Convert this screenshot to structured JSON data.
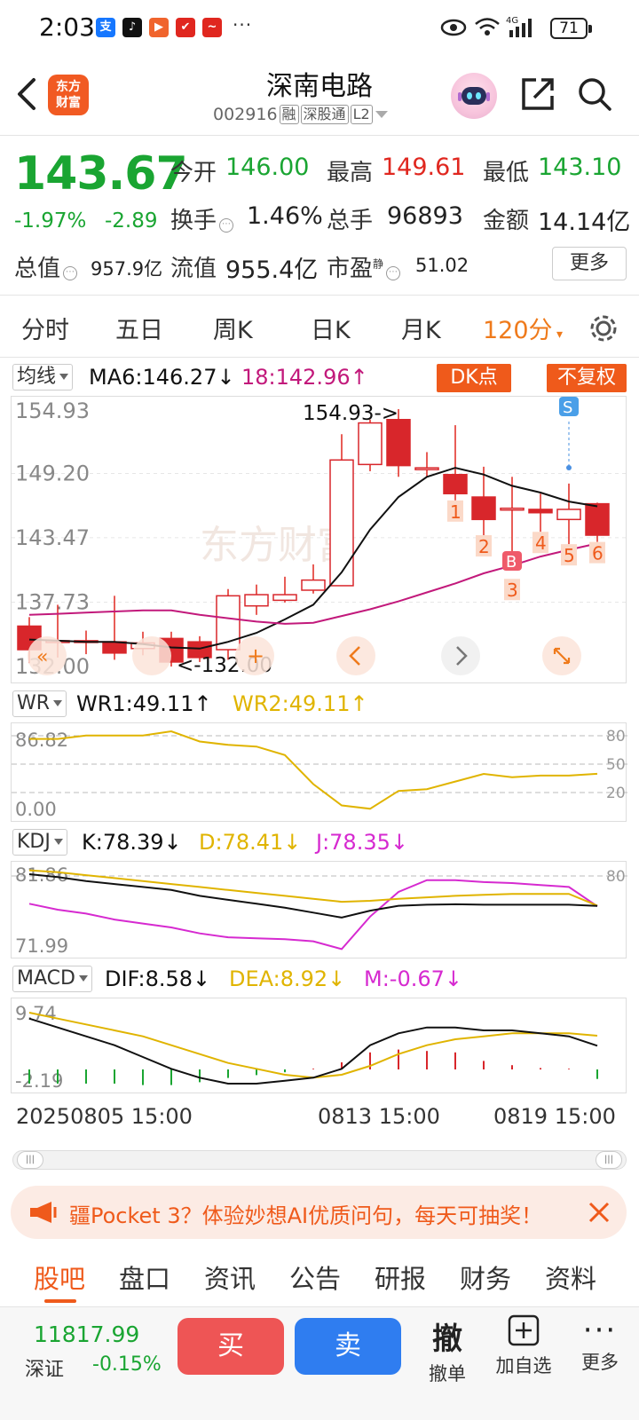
{
  "status_bar": {
    "time": "2:03",
    "more": "···",
    "battery": "71",
    "network": "4G"
  },
  "header": {
    "logo_line1": "东方",
    "logo_line2": "财富",
    "stock_name": "深南电路",
    "stock_code": "002916",
    "tags": [
      "融",
      "深股通",
      "L2"
    ]
  },
  "quote": {
    "price": "143.67",
    "change_pct": "-1.97%",
    "change_amt": "-2.89",
    "open_label": "今开",
    "open": "146.00",
    "high_label": "最高",
    "high": "149.61",
    "low_label": "最低",
    "low": "143.10",
    "turnover_label": "换手",
    "turnover": "1.46%",
    "volume_label": "总手",
    "volume": "96893",
    "amount_label": "金额",
    "amount": "14.14亿",
    "mktcap_label": "总值",
    "mktcap": "957.9亿",
    "float_label": "流值",
    "float": "955.4亿",
    "pe_label": "市盈",
    "pe_sup": "静",
    "pe": "51.02",
    "more_label": "更多"
  },
  "period_tabs": [
    "分时",
    "五日",
    "周K",
    "日K",
    "月K",
    "120分"
  ],
  "active_period": "120分",
  "main_indicator": {
    "selector": "均线",
    "ma6": "MA6:146.27↓",
    "ma18": "18:142.96↑",
    "dk_label": "DK点",
    "fq_label": "不复权",
    "y_labels": [
      "154.93",
      "149.20",
      "143.47",
      "137.73",
      "132.00"
    ],
    "max_label": "154.93->",
    "min_label": "<-132.00",
    "watermark": "东方财富",
    "signal_labels": [
      "1",
      "2",
      "3",
      "4",
      "5",
      "6"
    ],
    "b_marker": "B",
    "s_marker": "S"
  },
  "wr": {
    "selector": "WR",
    "wr1": "WR1:49.11↑",
    "wr2": "WR2:49.11↑",
    "y_top": "86.82",
    "y_bottom": "0.00",
    "levels": [
      "80",
      "50",
      "20"
    ]
  },
  "kdj": {
    "selector": "KDJ",
    "k": "K:78.39↓",
    "d": "D:78.41↓",
    "j": "J:78.35↓",
    "y_top": "81.86",
    "y_bottom": "71.99",
    "level": "80"
  },
  "macd": {
    "selector": "MACD",
    "dif": "DIF:8.58↓",
    "dea": "DEA:8.92↓",
    "m": "M:-0.67↓",
    "y_top": "9.74",
    "y_bottom": "-2.19"
  },
  "dates": [
    "20250805 15:00",
    "0813 15:00",
    "0819 15:00"
  ],
  "banner": {
    "text": "疆Pocket 3？体验妙想AI优质问句，每天可抽奖！"
  },
  "bottom_tabs": [
    "股吧",
    "盘口",
    "资讯",
    "公告",
    "研报",
    "财务",
    "资料"
  ],
  "active_bottom_tab": "股吧",
  "bottom_bar": {
    "index_value": "11817.99",
    "index_name": "深证",
    "index_change": "-0.15%",
    "buy": "买",
    "sell": "卖",
    "cancel_icon_text": "撤",
    "cancel_label": "撤单",
    "add_label": "加自选",
    "more_label": "更多"
  },
  "colors": {
    "up": "#e0271f",
    "down": "#1aa532",
    "accent": "#ef5a1b",
    "ma6": "#111111",
    "ma18": "#c2197b",
    "wr2": "#e0b400",
    "kdj_j": "#d62ad0"
  },
  "chart_data": {
    "type": "candlestick",
    "title": "深南电路 120分",
    "ylim": [
      132.0,
      154.93
    ],
    "candles": [
      {
        "o": 135.6,
        "c": 133.5,
        "h": 136.4,
        "l": 132.3
      },
      {
        "o": 134.3,
        "c": 134.3,
        "h": 137.5,
        "l": 132.8
      },
      {
        "o": 134.3,
        "c": 134.3,
        "h": 135.2,
        "l": 133.1
      },
      {
        "o": 134.2,
        "c": 133.2,
        "h": 138.3,
        "l": 132.6
      },
      {
        "o": 133.6,
        "c": 134.1,
        "h": 135.1,
        "l": 133.0
      },
      {
        "o": 134.5,
        "c": 132.4,
        "h": 135.1,
        "l": 132.0
      },
      {
        "o": 134.2,
        "c": 132.8,
        "h": 134.7,
        "l": 132.4
      },
      {
        "o": 133.5,
        "c": 138.3,
        "h": 138.9,
        "l": 132.6
      },
      {
        "o": 137.4,
        "c": 138.4,
        "h": 139.3,
        "l": 136.6
      },
      {
        "o": 137.9,
        "c": 138.4,
        "h": 140.0,
        "l": 137.7
      },
      {
        "o": 138.8,
        "c": 139.7,
        "h": 141.1,
        "l": 138.5
      },
      {
        "o": 139.2,
        "c": 150.4,
        "h": 152.7,
        "l": 139.2
      },
      {
        "o": 150.0,
        "c": 153.7,
        "h": 154.0,
        "l": 149.4
      },
      {
        "o": 154.0,
        "c": 149.9,
        "h": 154.93,
        "l": 148.9
      },
      {
        "o": 149.7,
        "c": 149.7,
        "h": 151.1,
        "l": 148.9
      },
      {
        "o": 149.1,
        "c": 147.4,
        "h": 153.5,
        "l": 146.8
      },
      {
        "o": 147.1,
        "c": 145.1,
        "h": 149.8,
        "l": 143.7
      },
      {
        "o": 146.1,
        "c": 146.1,
        "h": 148.9,
        "l": 140.6
      },
      {
        "o": 146.0,
        "c": 145.7,
        "h": 147.4,
        "l": 144.0
      },
      {
        "o": 145.1,
        "c": 146.0,
        "h": 148.3,
        "l": 142.9
      },
      {
        "o": 146.5,
        "c": 143.7,
        "h": 146.6,
        "l": 143.1
      }
    ],
    "ma6": [
      134.4,
      134.3,
      134.2,
      134.2,
      134.0,
      133.7,
      133.6,
      134.2,
      135.0,
      136.2,
      137.5,
      140.4,
      144.2,
      147.1,
      148.9,
      149.7,
      149.1,
      148.1,
      147.5,
      146.7,
      146.27
    ],
    "ma18": [
      136.6,
      136.7,
      136.8,
      136.9,
      137.0,
      137.0,
      136.6,
      136.3,
      136.0,
      135.8,
      135.9,
      136.5,
      137.1,
      137.8,
      138.6,
      139.4,
      140.3,
      141.0,
      141.8,
      142.4,
      142.96
    ],
    "wr1": [
      90.0,
      90.0,
      94.0,
      94.0,
      94.0,
      99.0,
      87.0,
      83.0,
      81.0,
      71.0,
      37.0,
      12.0,
      8.0,
      29.0,
      31.0,
      40.0,
      49.0,
      45.0,
      47.0,
      47.0,
      49.11
    ],
    "kdj_k": [
      81.6,
      81.3,
      80.9,
      80.6,
      80.3,
      80.0,
      79.4,
      79.0,
      78.6,
      78.2,
      77.7,
      77.2,
      77.9,
      78.4,
      78.5,
      78.55,
      78.5,
      78.5,
      78.5,
      78.5,
      78.39
    ],
    "kdj_d": [
      82.0,
      81.8,
      81.5,
      81.2,
      80.9,
      80.6,
      80.3,
      80.0,
      79.7,
      79.4,
      79.1,
      78.8,
      78.9,
      79.1,
      79.25,
      79.4,
      79.5,
      79.6,
      79.6,
      79.6,
      78.41
    ],
    "kdj_j": [
      78.6,
      78.0,
      77.6,
      77.0,
      76.6,
      76.2,
      75.6,
      75.2,
      75.1,
      75.0,
      74.8,
      74.0,
      77.3,
      79.8,
      81.0,
      81.0,
      80.8,
      80.7,
      80.5,
      80.3,
      78.35
    ],
    "macd_dif": [
      9.5,
      9.2,
      8.9,
      8.6,
      8.2,
      7.8,
      7.5,
      7.3,
      7.3,
      7.4,
      7.5,
      7.8,
      8.6,
      9.0,
      9.2,
      9.2,
      9.1,
      9.1,
      9.0,
      8.9,
      8.58
    ],
    "macd_dea": [
      9.7,
      9.5,
      9.3,
      9.1,
      8.9,
      8.6,
      8.3,
      8.0,
      7.8,
      7.6,
      7.5,
      7.6,
      7.9,
      8.3,
      8.6,
      8.8,
      8.9,
      9.0,
      9.0,
      9.0,
      8.92
    ],
    "macd_m": [
      -1.0,
      -1.0,
      -1.0,
      -1.0,
      -1.1,
      -1.1,
      -0.9,
      -0.6,
      -0.4,
      -0.2,
      0.05,
      0.5,
      1.2,
      1.4,
      1.3,
      1.2,
      0.6,
      0.3,
      0.1,
      0.05,
      -0.67
    ]
  }
}
